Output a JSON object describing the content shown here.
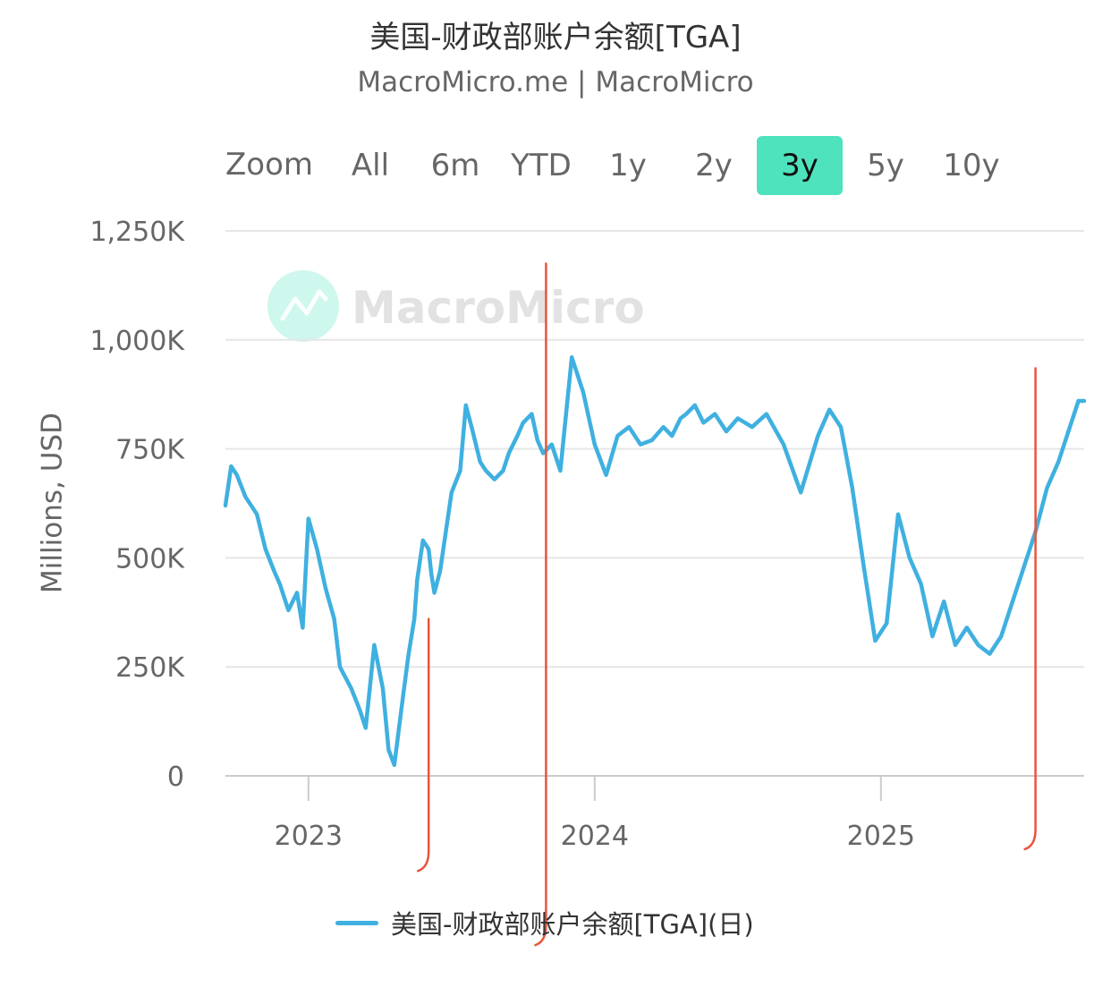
{
  "header": {
    "title": "美国-财政部账户余额[TGA]",
    "subtitle": "MacroMicro.me | MacroMicro"
  },
  "zoom": {
    "label": "Zoom",
    "buttons": [
      "All",
      "6m",
      "YTD",
      "1y",
      "2y",
      "3y",
      "5y",
      "10y"
    ],
    "selected": "3y"
  },
  "watermark": {
    "text": "MacroMicro"
  },
  "colors": {
    "series": "#3fb0e0",
    "selected_button": "#4ee2bd",
    "annotation": "#e8553b",
    "grid": "#e6e6e6"
  },
  "chart_data": {
    "type": "line",
    "ylabel": "Millions, USD",
    "ylim": [
      0,
      1250000
    ],
    "yticks": [
      "0",
      "250K",
      "500K",
      "750K",
      "1,000K",
      "1,250K"
    ],
    "ytick_values": [
      0,
      250000,
      500000,
      750000,
      1000000,
      1250000
    ],
    "xlim": [
      2022.71,
      2025.71
    ],
    "xticks": [
      "2023",
      "2024",
      "2025"
    ],
    "xtick_values": [
      2023.0,
      2024.0,
      2025.0
    ],
    "legend_position": "bottom",
    "series": [
      {
        "name": "美国-财政部账户余额[TGA](日)",
        "x": [
          2022.71,
          2022.73,
          2022.75,
          2022.78,
          2022.82,
          2022.85,
          2022.88,
          2022.9,
          2022.93,
          2022.96,
          2022.98,
          2023.0,
          2023.03,
          2023.06,
          2023.09,
          2023.11,
          2023.15,
          2023.18,
          2023.2,
          2023.23,
          2023.26,
          2023.28,
          2023.3,
          2023.33,
          2023.35,
          2023.37,
          2023.38,
          2023.4,
          2023.42,
          2023.43,
          2023.44,
          2023.46,
          2023.48,
          2023.5,
          2023.53,
          2023.55,
          2023.57,
          2023.6,
          2023.62,
          2023.65,
          2023.68,
          2023.7,
          2023.73,
          2023.75,
          2023.78,
          2023.8,
          2023.82,
          2023.85,
          2023.88,
          2023.92,
          2023.96,
          2024.0,
          2024.04,
          2024.08,
          2024.12,
          2024.16,
          2024.2,
          2024.24,
          2024.27,
          2024.3,
          2024.32,
          2024.35,
          2024.38,
          2024.42,
          2024.46,
          2024.5,
          2024.55,
          2024.6,
          2024.66,
          2024.72,
          2024.78,
          2024.82,
          2024.86,
          2024.9,
          2024.94,
          2024.98,
          2025.02,
          2025.06,
          2025.1,
          2025.14,
          2025.18,
          2025.22,
          2025.26,
          2025.3,
          2025.34,
          2025.38,
          2025.42,
          2025.46,
          2025.5,
          2025.54,
          2025.58,
          2025.62,
          2025.66,
          2025.69,
          2025.71
        ],
        "y": [
          620000,
          710000,
          690000,
          640000,
          600000,
          520000,
          470000,
          440000,
          380000,
          420000,
          340000,
          590000,
          520000,
          430000,
          360000,
          250000,
          200000,
          150000,
          110000,
          300000,
          200000,
          60000,
          25000,
          180000,
          280000,
          360000,
          450000,
          540000,
          520000,
          460000,
          420000,
          470000,
          560000,
          650000,
          700000,
          850000,
          800000,
          720000,
          700000,
          680000,
          700000,
          740000,
          780000,
          810000,
          830000,
          770000,
          740000,
          760000,
          700000,
          960000,
          880000,
          760000,
          690000,
          780000,
          800000,
          760000,
          770000,
          800000,
          780000,
          820000,
          830000,
          850000,
          810000,
          830000,
          790000,
          820000,
          800000,
          830000,
          760000,
          650000,
          780000,
          840000,
          800000,
          660000,
          480000,
          310000,
          350000,
          600000,
          500000,
          440000,
          320000,
          400000,
          300000,
          340000,
          300000,
          280000,
          320000,
          400000,
          480000,
          560000,
          660000,
          720000,
          800000,
          860000,
          860000
        ]
      }
    ],
    "annotations": [
      {
        "type": "vertical-line",
        "x": 2023.42,
        "y_top": 360000,
        "y_bottom": -210000
      },
      {
        "type": "vertical-line",
        "x": 2023.83,
        "y_top": 1175000,
        "y_bottom": -380000
      },
      {
        "type": "vertical-line",
        "x": 2025.54,
        "y_top": 935000,
        "y_bottom": -160000
      }
    ]
  }
}
